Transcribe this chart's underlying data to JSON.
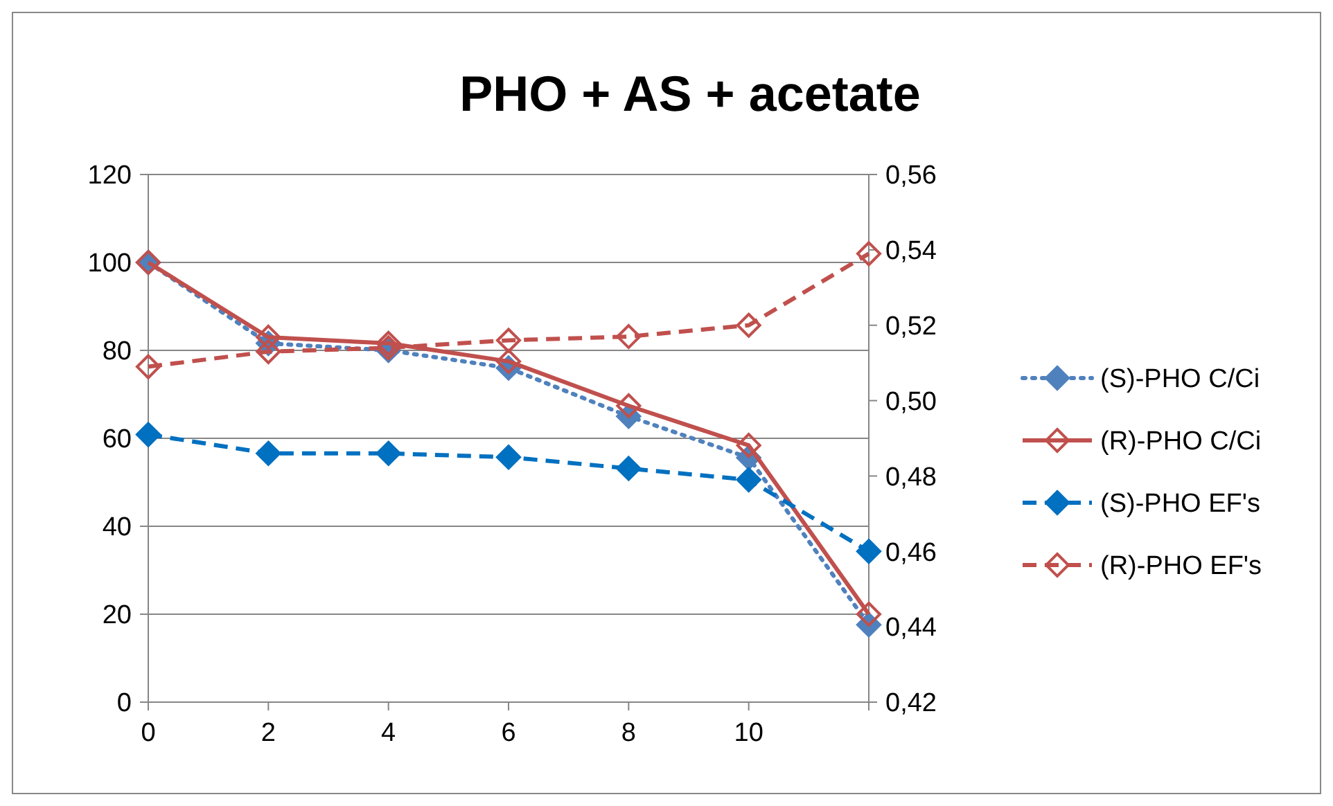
{
  "chart_data": {
    "type": "line",
    "title": "PHO + AS + acetate",
    "x": [
      0,
      2,
      4,
      6,
      8,
      10,
      12
    ],
    "xlim": [
      0,
      12
    ],
    "xticks": [
      0,
      2,
      4,
      6,
      8,
      10,
      {
        "value": 12,
        "label": null
      }
    ],
    "ylim": [
      0,
      120
    ],
    "yticks": [
      0,
      20,
      40,
      60,
      80,
      100,
      120
    ],
    "y2lim": [
      0.42,
      0.56
    ],
    "y2ticks": [
      {
        "value": 0.42,
        "label": "0,42"
      },
      {
        "value": 0.44,
        "label": "0,44"
      },
      {
        "value": 0.46,
        "label": "0,46"
      },
      {
        "value": 0.48,
        "label": "0,48"
      },
      {
        "value": 0.5,
        "label": "0,50"
      },
      {
        "value": 0.52,
        "label": "0,52"
      },
      {
        "value": 0.54,
        "label": "0,54"
      },
      {
        "value": 0.56,
        "label": "0,56"
      }
    ],
    "grid": "y",
    "legend": "right",
    "marker": "diamond",
    "series": [
      {
        "name": "(S)-PHO C/Ci",
        "color": "#4f81bd",
        "line_style": "dotted",
        "values": [
          100,
          81.6,
          80,
          76,
          65,
          55.6,
          17.6
        ]
      },
      {
        "name": "(R)-PHO C/Ci",
        "color": "#c0504d",
        "line_style": "solid",
        "values": [
          100,
          83,
          81.6,
          77.5,
          67.4,
          58.4,
          20
        ]
      },
      {
        "name": "(S)-PHO EF's",
        "color": "#0070c0",
        "line_style": "dashed",
        "axis": "y2",
        "values": [
          0.491,
          0.486,
          0.486,
          0.485,
          0.482,
          0.479,
          0.46
        ]
      },
      {
        "name": "(R)-PHO EF's",
        "color": "#c0504d",
        "line_style": "dashed",
        "axis": "y2",
        "values": [
          0.509,
          0.513,
          0.514,
          0.516,
          0.517,
          0.52,
          0.539
        ]
      }
    ]
  }
}
